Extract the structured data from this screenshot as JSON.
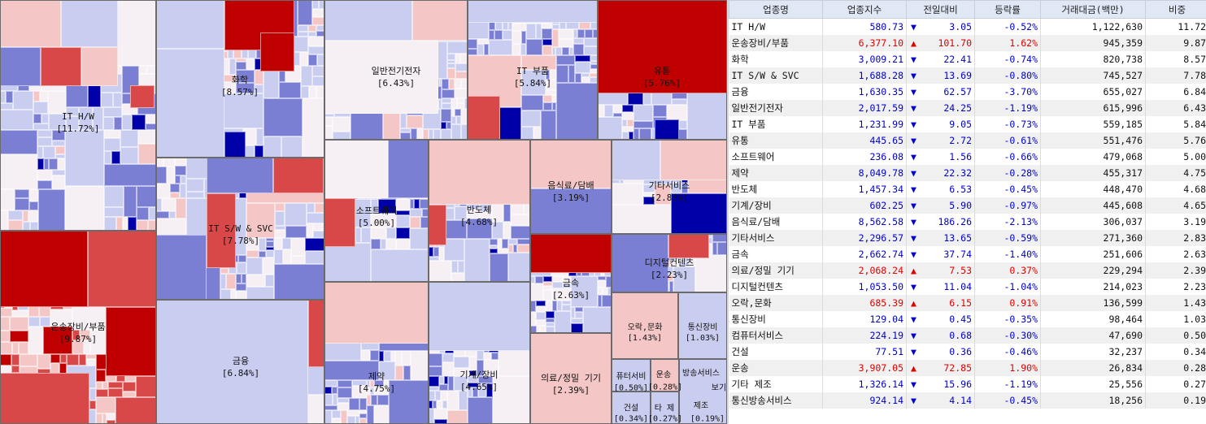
{
  "treemap": {
    "sectors": [
      {
        "name": "IT H/W",
        "pct": "[11.72%]",
        "change": -0.52
      },
      {
        "name": "운송장비/부품",
        "pct": "[9.87%]",
        "change": 1.62
      },
      {
        "name": "화학",
        "pct": "[8.57%]",
        "change": -0.74
      },
      {
        "name": "IT S/W & SVC",
        "pct": "[7.78%]",
        "change": -0.8
      },
      {
        "name": "금융",
        "pct": "[6.84%]",
        "change": -3.7
      },
      {
        "name": "일반전기전자",
        "pct": "[6.43%]",
        "change": -1.19
      },
      {
        "name": "IT 부품",
        "pct": "[5.84%]",
        "change": -0.73
      },
      {
        "name": "유통",
        "pct": "[5.76%]",
        "change": -0.61
      },
      {
        "name": "소프트웨어",
        "pct": "[5.00%]",
        "change": -0.66
      },
      {
        "name": "제약",
        "pct": "[4.75%]",
        "change": -0.28
      },
      {
        "name": "반도체",
        "pct": "[4.68%]",
        "change": -0.45
      },
      {
        "name": "기계/장비",
        "pct": "[4.65%]",
        "change": -0.97
      },
      {
        "name": "음식료/담배",
        "pct": "[3.19%]",
        "change": -2.13
      },
      {
        "name": "기타서비스",
        "pct": "[2.83%]",
        "change": -0.59
      },
      {
        "name": "금속",
        "pct": "[2.63%]",
        "change": -1.4
      },
      {
        "name": "의료/정밀 기기",
        "pct": "[2.39%]",
        "change": 0.37
      },
      {
        "name": "디지털컨텐츠",
        "pct": "[2.23%]",
        "change": -1.04
      },
      {
        "name": "오락,문화",
        "pct": "[1.43%]",
        "change": 0.91
      },
      {
        "name": "통신장비",
        "pct": "[1.03%]",
        "change": -0.35
      },
      {
        "name": "컴퓨터서비스",
        "pct": "[0.50%]",
        "change": -0.3
      },
      {
        "name": "운송",
        "pct": "[0.28%]",
        "change": 1.9
      },
      {
        "name": "건설",
        "pct": "[0.34%]",
        "change": -0.46
      },
      {
        "name": "기타 제조",
        "pct": "[0.27%]",
        "change": -1.19
      },
      {
        "name": "통신방송서비스",
        "pct": "",
        "change": -0.45
      }
    ],
    "tiny_labels": [
      "퓨터서비",
      "운송",
      "방송서비스",
      "보기",
      "건설",
      "타 제",
      "제조",
      "[0.50%]",
      "[0.28%]",
      "[0.34%]",
      "[0.27%]",
      "[0.19%]"
    ],
    "colors": {
      "strong_red": "#c00000",
      "red": "#d84848",
      "light_red": "#f4c6c6",
      "neutral": "#f6f0f4",
      "light_blue": "#c9cdf0",
      "blue": "#7b7fd4",
      "strong_blue": "#0000a8"
    }
  },
  "table": {
    "headers": [
      "업종명",
      "업종지수",
      "전일대비",
      "등락률",
      "거래대금(백만)",
      "비중"
    ],
    "rows": [
      {
        "name": "IT H/W",
        "index": "580.73",
        "arrow": "▼",
        "diff": "3.05",
        "rate": "-0.52%",
        "volume": "1,122,630",
        "weight": "11.72",
        "dir": "down"
      },
      {
        "name": "운송장비/부품",
        "index": "6,377.10",
        "arrow": "▲",
        "diff": "101.70",
        "rate": "1.62%",
        "volume": "945,359",
        "weight": "9.87",
        "dir": "up"
      },
      {
        "name": "화학",
        "index": "3,009.21",
        "arrow": "▼",
        "diff": "22.41",
        "rate": "-0.74%",
        "volume": "820,738",
        "weight": "8.57",
        "dir": "down"
      },
      {
        "name": "IT S/W & SVC",
        "index": "1,688.28",
        "arrow": "▼",
        "diff": "13.69",
        "rate": "-0.80%",
        "volume": "745,527",
        "weight": "7.78",
        "dir": "down"
      },
      {
        "name": "금융",
        "index": "1,630.35",
        "arrow": "▼",
        "diff": "62.57",
        "rate": "-3.70%",
        "volume": "655,027",
        "weight": "6.84",
        "dir": "down"
      },
      {
        "name": "일반전기전자",
        "index": "2,017.59",
        "arrow": "▼",
        "diff": "24.25",
        "rate": "-1.19%",
        "volume": "615,996",
        "weight": "6.43",
        "dir": "down"
      },
      {
        "name": "IT 부품",
        "index": "1,231.99",
        "arrow": "▼",
        "diff": "9.05",
        "rate": "-0.73%",
        "volume": "559,185",
        "weight": "5.84",
        "dir": "down"
      },
      {
        "name": "유통",
        "index": "445.65",
        "arrow": "▼",
        "diff": "2.72",
        "rate": "-0.61%",
        "volume": "551,476",
        "weight": "5.76",
        "dir": "down"
      },
      {
        "name": "소프트웨어",
        "index": "236.08",
        "arrow": "▼",
        "diff": "1.56",
        "rate": "-0.66%",
        "volume": "479,068",
        "weight": "5.00",
        "dir": "down"
      },
      {
        "name": "제약",
        "index": "8,049.78",
        "arrow": "▼",
        "diff": "22.32",
        "rate": "-0.28%",
        "volume": "455,317",
        "weight": "4.75",
        "dir": "down"
      },
      {
        "name": "반도체",
        "index": "1,457.34",
        "arrow": "▼",
        "diff": "6.53",
        "rate": "-0.45%",
        "volume": "448,470",
        "weight": "4.68",
        "dir": "down"
      },
      {
        "name": "기계/장비",
        "index": "602.25",
        "arrow": "▼",
        "diff": "5.90",
        "rate": "-0.97%",
        "volume": "445,608",
        "weight": "4.65",
        "dir": "down"
      },
      {
        "name": "음식료/담배",
        "index": "8,562.58",
        "arrow": "▼",
        "diff": "186.26",
        "rate": "-2.13%",
        "volume": "306,037",
        "weight": "3.19",
        "dir": "down"
      },
      {
        "name": "기타서비스",
        "index": "2,296.57",
        "arrow": "▼",
        "diff": "13.65",
        "rate": "-0.59%",
        "volume": "271,360",
        "weight": "2.83",
        "dir": "down"
      },
      {
        "name": "금속",
        "index": "2,662.74",
        "arrow": "▼",
        "diff": "37.74",
        "rate": "-1.40%",
        "volume": "251,606",
        "weight": "2.63",
        "dir": "down"
      },
      {
        "name": "의료/정밀 기기",
        "index": "2,068.24",
        "arrow": "▲",
        "diff": "7.53",
        "rate": "0.37%",
        "volume": "229,294",
        "weight": "2.39",
        "dir": "up"
      },
      {
        "name": "디지털컨텐츠",
        "index": "1,053.50",
        "arrow": "▼",
        "diff": "11.04",
        "rate": "-1.04%",
        "volume": "214,023",
        "weight": "2.23",
        "dir": "down"
      },
      {
        "name": "오락,문화",
        "index": "685.39",
        "arrow": "▲",
        "diff": "6.15",
        "rate": "0.91%",
        "volume": "136,599",
        "weight": "1.43",
        "dir": "up"
      },
      {
        "name": "통신장비",
        "index": "129.04",
        "arrow": "▼",
        "diff": "0.45",
        "rate": "-0.35%",
        "volume": "98,464",
        "weight": "1.03",
        "dir": "down"
      },
      {
        "name": "컴퓨터서비스",
        "index": "224.19",
        "arrow": "▼",
        "diff": "0.68",
        "rate": "-0.30%",
        "volume": "47,690",
        "weight": "0.50",
        "dir": "down"
      },
      {
        "name": "건설",
        "index": "77.51",
        "arrow": "▼",
        "diff": "0.36",
        "rate": "-0.46%",
        "volume": "32,237",
        "weight": "0.34",
        "dir": "down"
      },
      {
        "name": "운송",
        "index": "3,907.05",
        "arrow": "▲",
        "diff": "72.85",
        "rate": "1.90%",
        "volume": "26,834",
        "weight": "0.28",
        "dir": "up"
      },
      {
        "name": "기타 제조",
        "index": "1,326.14",
        "arrow": "▼",
        "diff": "15.96",
        "rate": "-1.19%",
        "volume": "25,556",
        "weight": "0.27",
        "dir": "down"
      },
      {
        "name": "통신방송서비스",
        "index": "924.14",
        "arrow": "▼",
        "diff": "4.14",
        "rate": "-0.45%",
        "volume": "18,256",
        "weight": "0.19",
        "dir": "down"
      }
    ]
  },
  "chart_data": {
    "type": "table",
    "columns": [
      "업종명",
      "업종지수",
      "전일대비",
      "등락률",
      "거래대금(백만)",
      "비중"
    ],
    "rows": [
      [
        "IT H/W",
        580.73,
        -3.05,
        -0.52,
        1122630,
        11.72
      ],
      [
        "운송장비/부품",
        6377.1,
        101.7,
        1.62,
        945359,
        9.87
      ],
      [
        "화학",
        3009.21,
        -22.41,
        -0.74,
        820738,
        8.57
      ],
      [
        "IT S/W & SVC",
        1688.28,
        -13.69,
        -0.8,
        745527,
        7.78
      ],
      [
        "금융",
        1630.35,
        -62.57,
        -3.7,
        655027,
        6.84
      ],
      [
        "일반전기전자",
        2017.59,
        -24.25,
        -1.19,
        615996,
        6.43
      ],
      [
        "IT 부품",
        1231.99,
        -9.05,
        -0.73,
        559185,
        5.84
      ],
      [
        "유통",
        445.65,
        -2.72,
        -0.61,
        551476,
        5.76
      ],
      [
        "소프트웨어",
        236.08,
        -1.56,
        -0.66,
        479068,
        5.0
      ],
      [
        "제약",
        8049.78,
        -22.32,
        -0.28,
        455317,
        4.75
      ],
      [
        "반도체",
        1457.34,
        -6.53,
        -0.45,
        448470,
        4.68
      ],
      [
        "기계/장비",
        602.25,
        -5.9,
        -0.97,
        445608,
        4.65
      ],
      [
        "음식료/담배",
        8562.58,
        -186.26,
        -2.13,
        306037,
        3.19
      ],
      [
        "기타서비스",
        2296.57,
        -13.65,
        -0.59,
        271360,
        2.83
      ],
      [
        "금속",
        2662.74,
        -37.74,
        -1.4,
        251606,
        2.63
      ],
      [
        "의료/정밀 기기",
        2068.24,
        7.53,
        0.37,
        229294,
        2.39
      ],
      [
        "디지털컨텐츠",
        1053.5,
        -11.04,
        -1.04,
        214023,
        2.23
      ],
      [
        "오락,문화",
        685.39,
        6.15,
        0.91,
        136599,
        1.43
      ],
      [
        "통신장비",
        129.04,
        -0.45,
        -0.35,
        98464,
        1.03
      ],
      [
        "컴퓨터서비스",
        224.19,
        -0.68,
        -0.3,
        47690,
        0.5
      ],
      [
        "건설",
        77.51,
        -0.36,
        -0.46,
        32237,
        0.34
      ],
      [
        "운송",
        3907.05,
        72.85,
        1.9,
        26834,
        0.28
      ],
      [
        "기타 제조",
        1326.14,
        -15.96,
        -1.19,
        25556,
        0.27
      ],
      [
        "통신방송서비스",
        924.14,
        -4.14,
        -0.45,
        18256,
        0.19
      ]
    ]
  }
}
